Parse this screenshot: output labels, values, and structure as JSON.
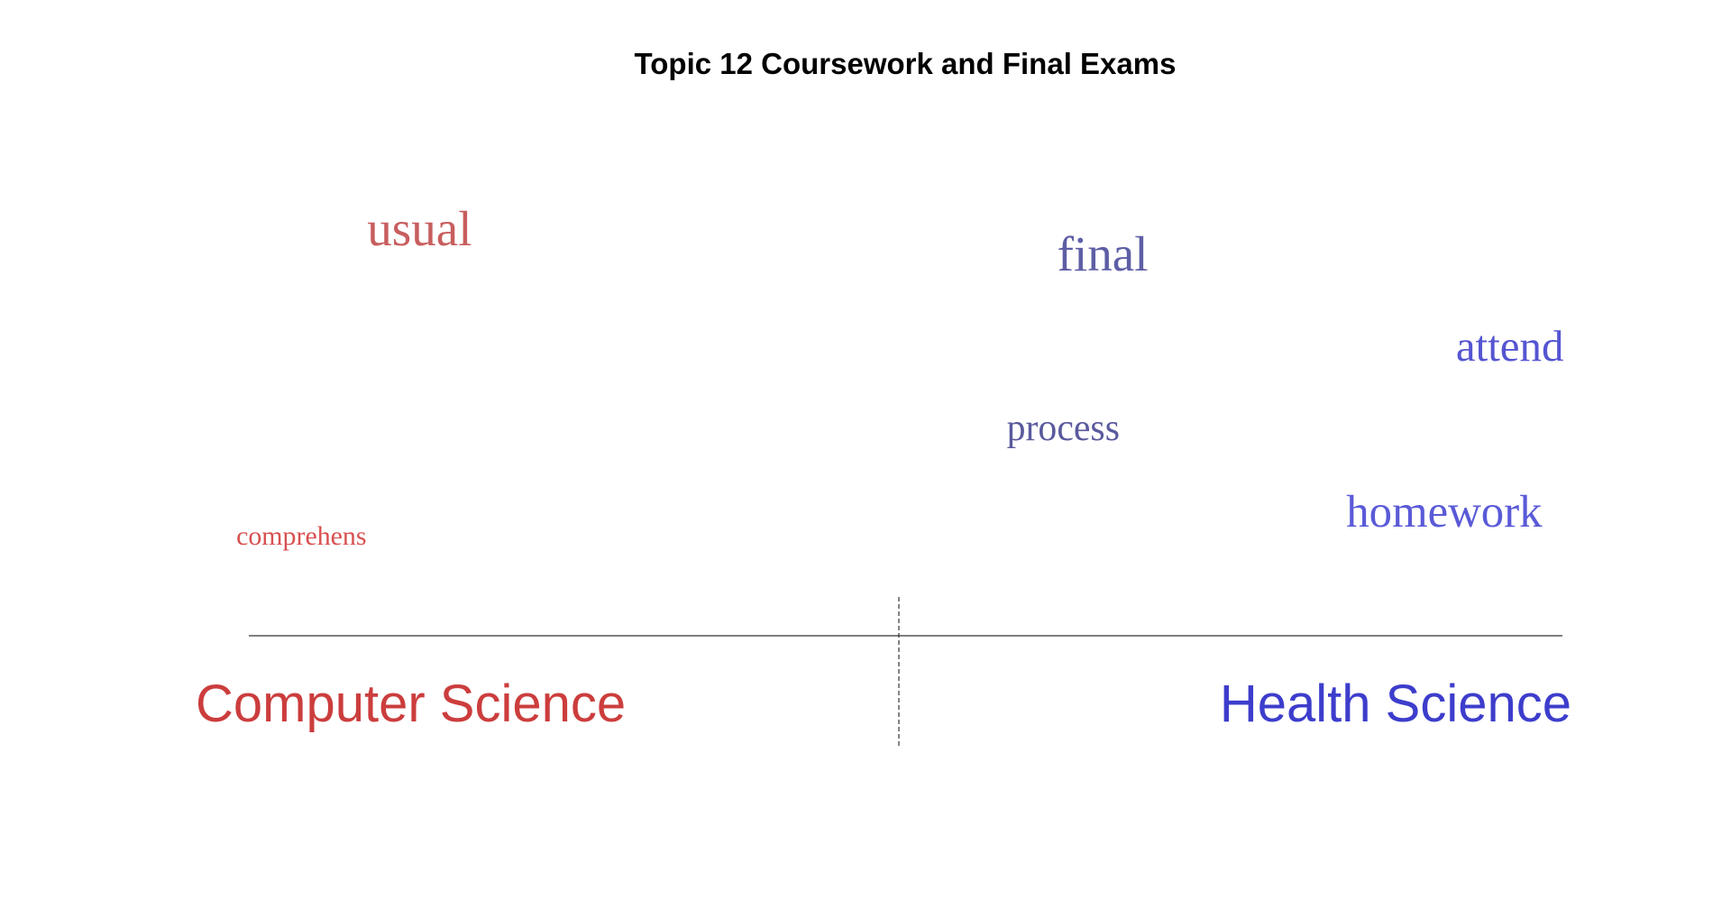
{
  "chart_data": {
    "type": "scatter",
    "title": "Topic 12 Coursework and Final Exams",
    "groups": [
      {
        "name": "Computer Science",
        "color": "#cc3d3d"
      },
      {
        "name": "Health Science",
        "color": "#3d3dcc"
      }
    ],
    "words": [
      {
        "text": "usual",
        "group": "Computer Science",
        "x": 0.13,
        "y": 0.92,
        "weight": 0.92,
        "color": "#c85e5e"
      },
      {
        "text": "comprehens",
        "group": "Computer Science",
        "x": 0.04,
        "y": 0.09,
        "weight": 0.22,
        "color": "#d85050"
      },
      {
        "text": "final",
        "group": "Health Science",
        "x": 0.65,
        "y": 0.85,
        "weight": 0.92,
        "color": "#5e5ea6"
      },
      {
        "text": "attend",
        "group": "Health Science",
        "x": 0.96,
        "y": 0.6,
        "weight": 0.75,
        "color": "#5555d2"
      },
      {
        "text": "process",
        "group": "Health Science",
        "x": 0.62,
        "y": 0.38,
        "weight": 0.55,
        "color": "#5a5a9e"
      },
      {
        "text": "homework",
        "group": "Health Science",
        "x": 0.91,
        "y": 0.14,
        "weight": 0.8,
        "color": "#5a5ad8"
      }
    ],
    "xlim": [
      0,
      1
    ],
    "ylim": [
      0,
      1
    ],
    "grid": false,
    "legend": "none"
  }
}
